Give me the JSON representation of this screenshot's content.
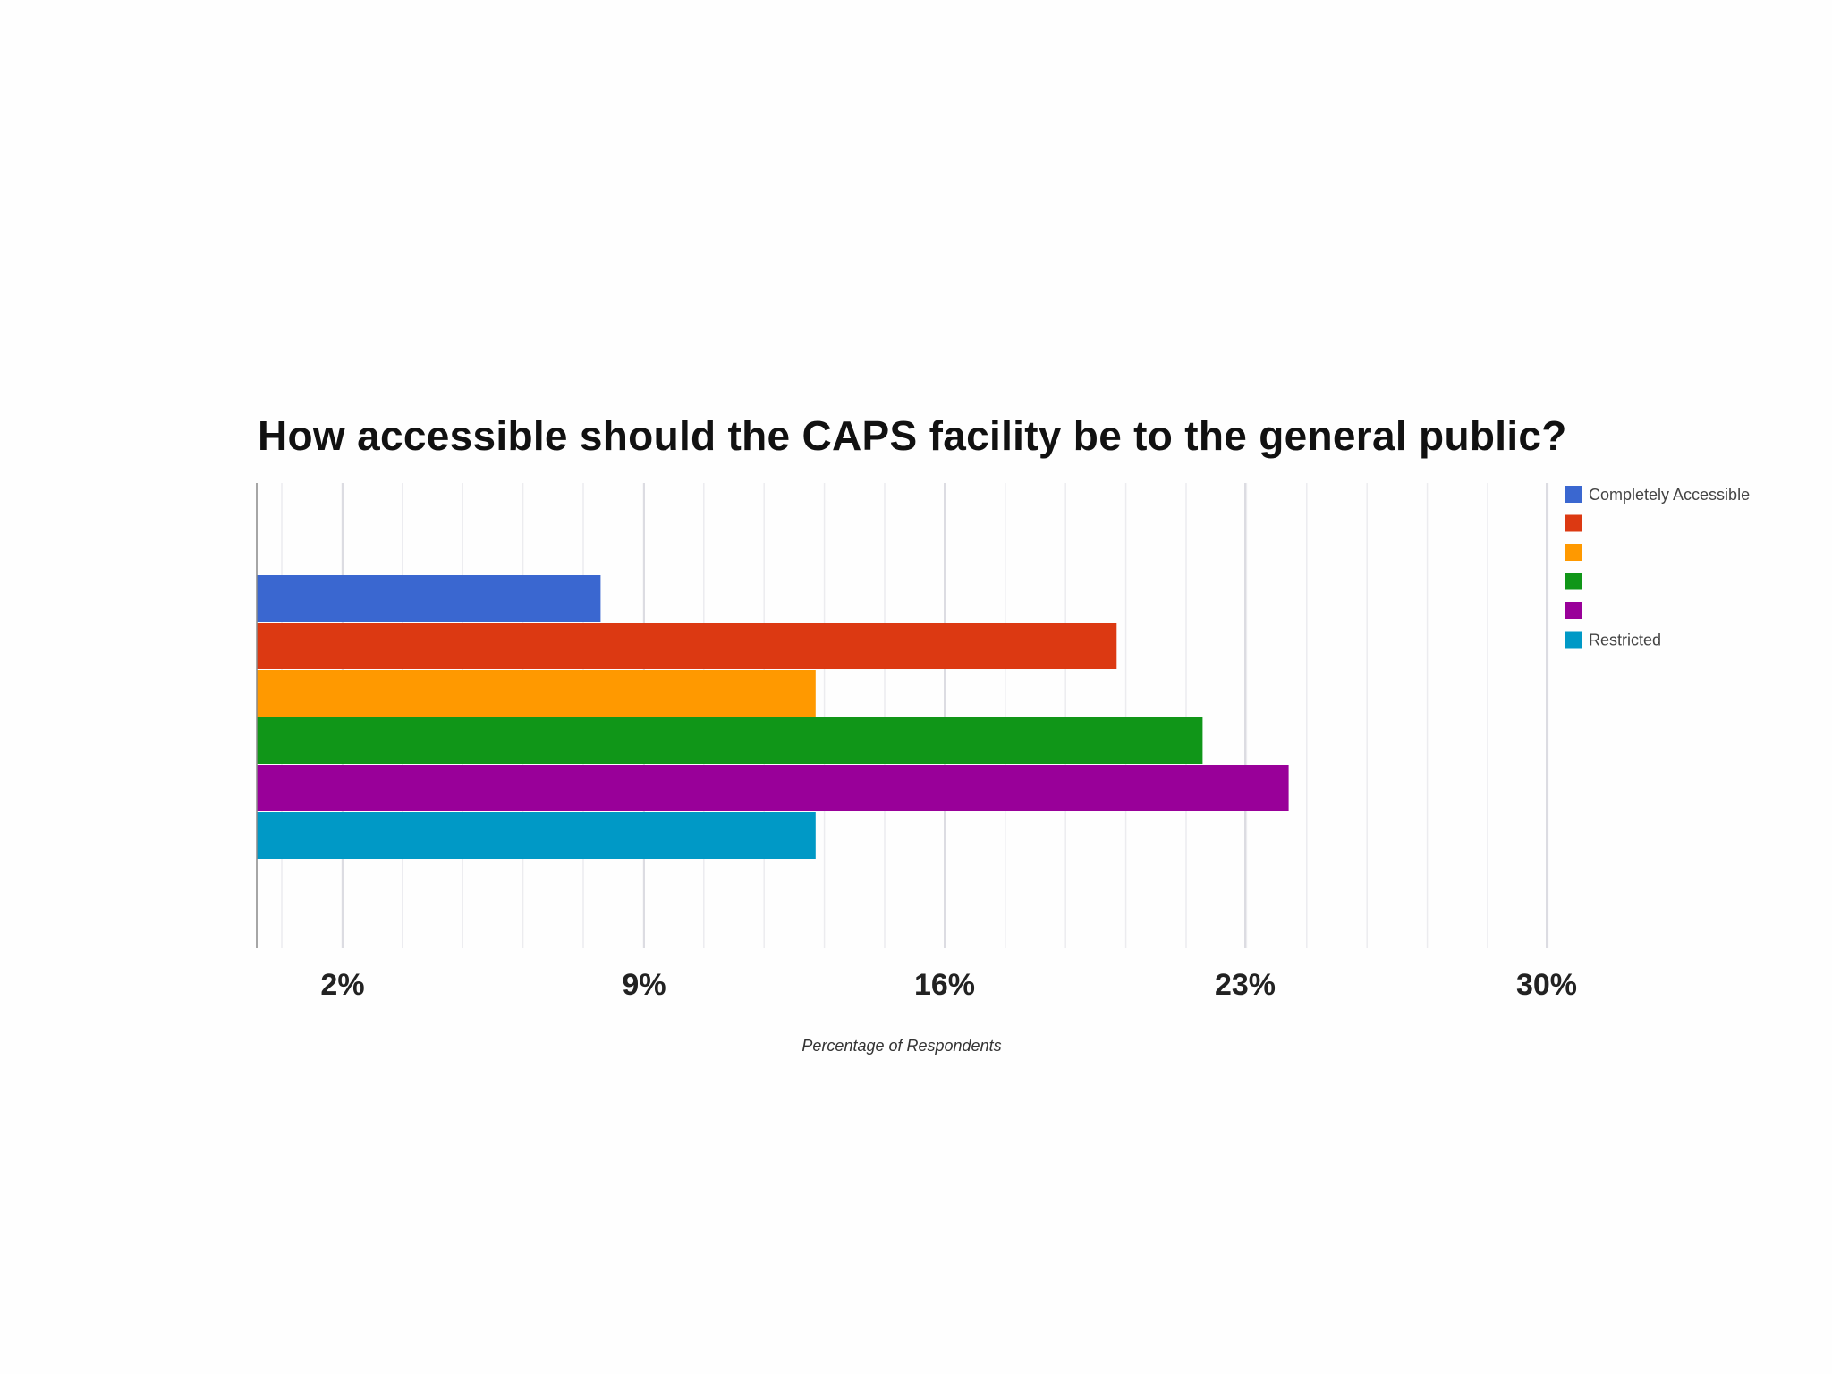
{
  "chart_data": {
    "type": "bar",
    "orientation": "horizontal",
    "title": "How accessible should the CAPS facility be to the general public?",
    "xlabel": "Percentage of Respondents",
    "ylabel": "",
    "xlim": [
      0,
      30
    ],
    "xticks": [
      2,
      9,
      16,
      23,
      30
    ],
    "xtick_labels": [
      "2%",
      "9%",
      "16%",
      "23%",
      "30%"
    ],
    "grid": true,
    "legend_position": "right",
    "series": [
      {
        "name": "Completely Accessible",
        "value": 8.0,
        "color": "#3a67d0"
      },
      {
        "name": "",
        "value": 20.0,
        "color": "#dc3912"
      },
      {
        "name": "",
        "value": 13.0,
        "color": "#ff9900"
      },
      {
        "name": "",
        "value": 22.0,
        "color": "#109618"
      },
      {
        "name": "",
        "value": 24.0,
        "color": "#990099"
      },
      {
        "name": "Restricted",
        "value": 13.0,
        "color": "#0099c6"
      }
    ]
  }
}
